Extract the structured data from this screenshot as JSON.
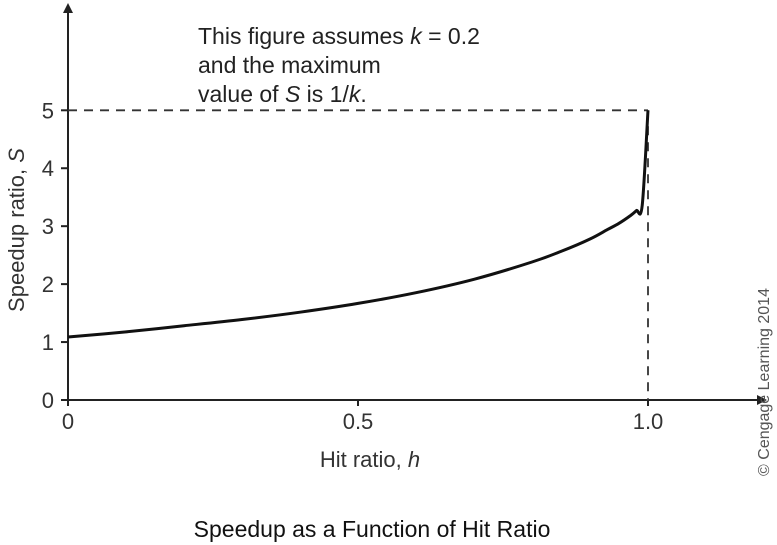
{
  "chart_data": {
    "type": "line",
    "x": [
      0.0,
      0.1,
      0.2,
      0.3,
      0.4,
      0.5,
      0.6,
      0.7,
      0.8,
      0.85,
      0.9,
      0.93,
      0.95,
      0.97,
      0.98,
      0.99,
      1.0
    ],
    "series": [
      {
        "values": [
          1.087,
          1.176,
          1.282,
          1.389,
          1.515,
          1.667,
          1.852,
          2.083,
          2.381,
          2.564,
          2.778,
          2.941,
          3.049,
          3.185,
          3.268,
          3.356,
          5.0
        ]
      }
    ],
    "xlabel_main": "Hit ratio, ",
    "xlabel_var": "h",
    "ylabel_main": "Speedup ratio, ",
    "ylabel_var": "S",
    "xticks": [
      "0",
      "0.5",
      "1.0"
    ],
    "yticks": [
      "0",
      "1",
      "2",
      "3",
      "4",
      "5"
    ],
    "xlim": [
      0,
      1.2
    ],
    "ylim": [
      0,
      6.8
    ],
    "reference_lines": {
      "y": 5,
      "x": 1.0
    },
    "annotation": {
      "line1_a": "This figure assumes ",
      "line1_var": "k",
      "line1_b": " = 0.2",
      "line2": "and the maximum",
      "line3_a": "value of ",
      "line3_var": "S",
      "line3_b": " is 1/",
      "line3_var2": "k",
      "line3_c": "."
    },
    "caption": "Speedup as a Function of Hit Ratio",
    "credit": "© Cengage Learning 2014",
    "colors": {
      "axis": "#222222",
      "curve": "#111111",
      "dashed": "#333333"
    }
  }
}
